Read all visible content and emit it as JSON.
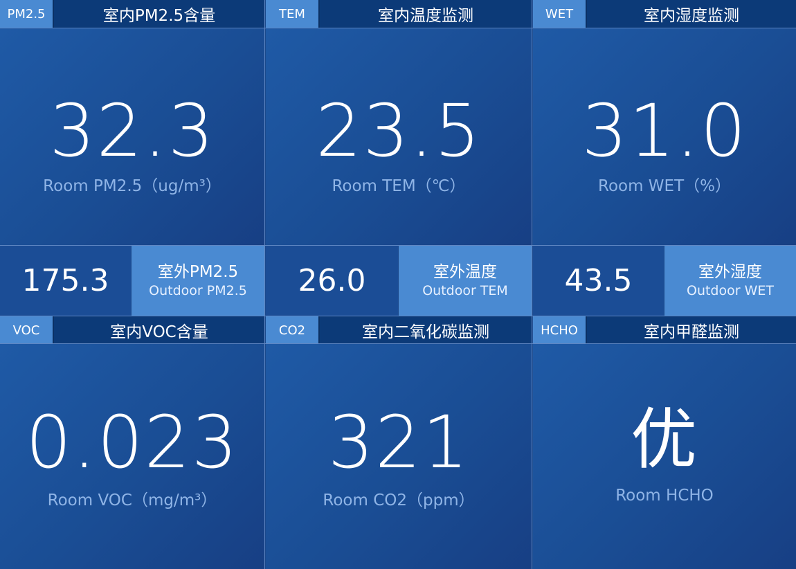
{
  "panels_top": [
    {
      "tag": "PM2.5",
      "title": "室内PM2.5含量",
      "value": "32.3",
      "unit": "Room PM2.5（ug/m³）"
    },
    {
      "tag": "TEM",
      "title": "室内温度监测",
      "value": "23.5",
      "unit": "Room TEM（℃）"
    },
    {
      "tag": "WET",
      "title": "室内湿度监测",
      "value": "31.0",
      "unit": "Room WET（%）"
    }
  ],
  "outdoor": [
    {
      "value": "175.3",
      "label_zh": "室外PM2.5",
      "label_en": "Outdoor PM2.5"
    },
    {
      "value": "26.0",
      "label_zh": "室外温度",
      "label_en": "Outdoor TEM"
    },
    {
      "value": "43.5",
      "label_zh": "室外湿度",
      "label_en": "Outdoor WET"
    }
  ],
  "panels_bottom": [
    {
      "tag": "VOC",
      "title": "室内VOC含量",
      "value": "0.023",
      "unit": "Room VOC（mg/m³）"
    },
    {
      "tag": "CO2",
      "title": "室内二氧化碳监测",
      "value": "321",
      "unit": "Room CO2（ppm）"
    },
    {
      "tag": "HCHO",
      "title": "室内甲醛监测",
      "value": "优",
      "unit": "Room HCHO"
    }
  ]
}
